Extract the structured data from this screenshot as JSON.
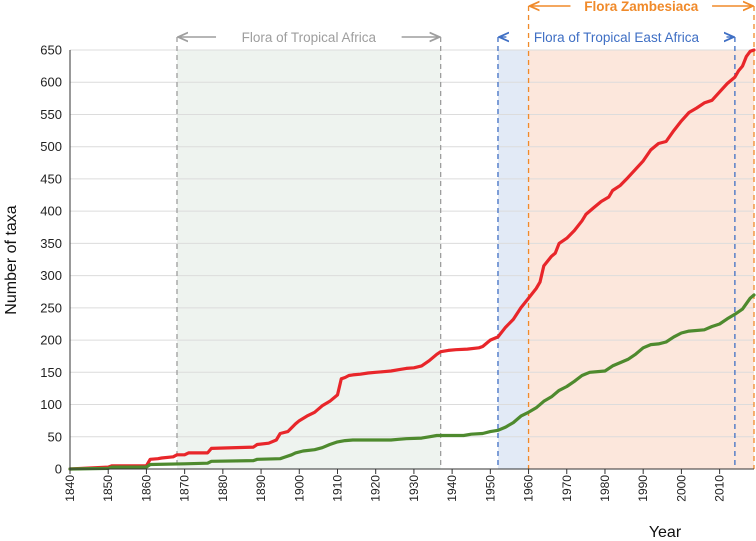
{
  "chart_data": {
    "type": "line",
    "xlabel": "Year",
    "ylabel": "Number of taxa",
    "xlim": [
      1840,
      2019
    ],
    "ylim": [
      0,
      650
    ],
    "x_ticks": [
      1840,
      1850,
      1860,
      1870,
      1880,
      1890,
      1900,
      1910,
      1920,
      1930,
      1940,
      1950,
      1960,
      1970,
      1980,
      1990,
      2000,
      2010
    ],
    "y_ticks": [
      0,
      50,
      100,
      150,
      200,
      250,
      300,
      350,
      400,
      450,
      500,
      550,
      600,
      650
    ],
    "series": [
      {
        "name": "red",
        "color": "#e8262a",
        "points": [
          [
            1840,
            0
          ],
          [
            1850,
            3
          ],
          [
            1851,
            5
          ],
          [
            1860,
            5
          ],
          [
            1861,
            15
          ],
          [
            1863,
            16
          ],
          [
            1864,
            17
          ],
          [
            1867,
            19
          ],
          [
            1868,
            22
          ],
          [
            1870,
            22
          ],
          [
            1871,
            25
          ],
          [
            1876,
            25
          ],
          [
            1877,
            32
          ],
          [
            1888,
            34
          ],
          [
            1889,
            38
          ],
          [
            1892,
            40
          ],
          [
            1894,
            45
          ],
          [
            1895,
            55
          ],
          [
            1897,
            58
          ],
          [
            1899,
            70
          ],
          [
            1900,
            75
          ],
          [
            1902,
            82
          ],
          [
            1904,
            88
          ],
          [
            1906,
            98
          ],
          [
            1908,
            105
          ],
          [
            1910,
            115
          ],
          [
            1911,
            140
          ],
          [
            1912,
            142
          ],
          [
            1913,
            145
          ],
          [
            1914,
            146
          ],
          [
            1916,
            147
          ],
          [
            1918,
            149
          ],
          [
            1920,
            150
          ],
          [
            1922,
            151
          ],
          [
            1924,
            152
          ],
          [
            1926,
            154
          ],
          [
            1928,
            156
          ],
          [
            1930,
            157
          ],
          [
            1932,
            160
          ],
          [
            1934,
            168
          ],
          [
            1936,
            178
          ],
          [
            1937,
            182
          ],
          [
            1939,
            184
          ],
          [
            1941,
            185
          ],
          [
            1944,
            186
          ],
          [
            1947,
            188
          ],
          [
            1948,
            190
          ],
          [
            1950,
            200
          ],
          [
            1952,
            205
          ],
          [
            1954,
            220
          ],
          [
            1956,
            232
          ],
          [
            1958,
            250
          ],
          [
            1960,
            265
          ],
          [
            1962,
            280
          ],
          [
            1963,
            290
          ],
          [
            1964,
            315
          ],
          [
            1966,
            330
          ],
          [
            1967,
            335
          ],
          [
            1968,
            350
          ],
          [
            1970,
            358
          ],
          [
            1972,
            370
          ],
          [
            1974,
            385
          ],
          [
            1975,
            395
          ],
          [
            1977,
            405
          ],
          [
            1979,
            415
          ],
          [
            1981,
            422
          ],
          [
            1982,
            432
          ],
          [
            1984,
            440
          ],
          [
            1986,
            452
          ],
          [
            1988,
            465
          ],
          [
            1990,
            478
          ],
          [
            1992,
            495
          ],
          [
            1994,
            505
          ],
          [
            1996,
            508
          ],
          [
            1998,
            525
          ],
          [
            2000,
            540
          ],
          [
            2002,
            553
          ],
          [
            2004,
            560
          ],
          [
            2006,
            568
          ],
          [
            2008,
            572
          ],
          [
            2010,
            585
          ],
          [
            2012,
            598
          ],
          [
            2014,
            608
          ],
          [
            2015,
            618
          ],
          [
            2016,
            625
          ],
          [
            2017,
            640
          ],
          [
            2018,
            648
          ],
          [
            2019,
            650
          ]
        ]
      },
      {
        "name": "green",
        "color": "#4e8a2e",
        "points": [
          [
            1840,
            0
          ],
          [
            1850,
            1
          ],
          [
            1851,
            3
          ],
          [
            1860,
            3
          ],
          [
            1861,
            7
          ],
          [
            1870,
            8
          ],
          [
            1876,
            9
          ],
          [
            1877,
            12
          ],
          [
            1888,
            13
          ],
          [
            1889,
            15
          ],
          [
            1895,
            16
          ],
          [
            1896,
            18
          ],
          [
            1898,
            22
          ],
          [
            1899,
            25
          ],
          [
            1901,
            28
          ],
          [
            1904,
            30
          ],
          [
            1906,
            33
          ],
          [
            1908,
            38
          ],
          [
            1910,
            42
          ],
          [
            1912,
            44
          ],
          [
            1914,
            45
          ],
          [
            1924,
            45
          ],
          [
            1926,
            46
          ],
          [
            1928,
            47
          ],
          [
            1932,
            48
          ],
          [
            1934,
            50
          ],
          [
            1936,
            52
          ],
          [
            1943,
            52
          ],
          [
            1945,
            54
          ],
          [
            1948,
            55
          ],
          [
            1950,
            58
          ],
          [
            1952,
            60
          ],
          [
            1954,
            65
          ],
          [
            1956,
            72
          ],
          [
            1958,
            82
          ],
          [
            1960,
            88
          ],
          [
            1962,
            95
          ],
          [
            1964,
            105
          ],
          [
            1966,
            112
          ],
          [
            1968,
            122
          ],
          [
            1970,
            128
          ],
          [
            1972,
            136
          ],
          [
            1974,
            145
          ],
          [
            1976,
            150
          ],
          [
            1980,
            152
          ],
          [
            1982,
            160
          ],
          [
            1984,
            165
          ],
          [
            1986,
            170
          ],
          [
            1988,
            178
          ],
          [
            1990,
            188
          ],
          [
            1992,
            193
          ],
          [
            1994,
            194
          ],
          [
            1996,
            197
          ],
          [
            1998,
            205
          ],
          [
            2000,
            211
          ],
          [
            2002,
            214
          ],
          [
            2006,
            216
          ],
          [
            2008,
            221
          ],
          [
            2010,
            225
          ],
          [
            2012,
            233
          ],
          [
            2014,
            240
          ],
          [
            2016,
            248
          ],
          [
            2018,
            265
          ],
          [
            2019,
            270
          ]
        ]
      }
    ],
    "annotations": [
      {
        "label": "Flora of Tropical Africa",
        "start": 1868,
        "end": 1937,
        "color": "#9e9e9e",
        "fill": "#eef3ef",
        "label_position": "inside-top"
      },
      {
        "label": "Flora of Tropical East Africa",
        "start": 1952,
        "end": 2014,
        "color": "#3f6fc4",
        "fill": "#e2eaf6",
        "label_position": "inside-top"
      },
      {
        "label": "Flora Zambesiaca",
        "start": 1960,
        "end": 2019,
        "color": "#f08a2a",
        "fill": "#fce7dc",
        "label_position": "above"
      }
    ]
  }
}
